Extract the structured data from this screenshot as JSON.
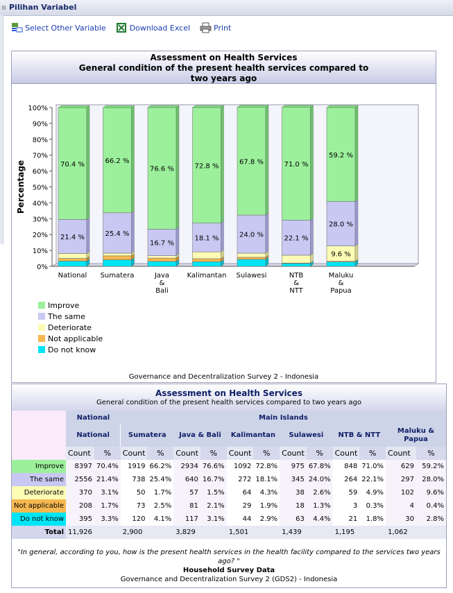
{
  "panel": {
    "title": "Pilihan Variabel"
  },
  "toolbar": {
    "select": "Select Other Variable",
    "download": "Download Excel",
    "print": "Print"
  },
  "chart_data": {
    "type": "bar",
    "stacked": true,
    "title": "Assessment on Health Services",
    "subtitle": "General condition of the present health services compared to two years ago",
    "title_lines": [
      "Assessment on Health Services",
      "General condition of the present health services compared to",
      "two years ago"
    ],
    "ylabel": "Percentage",
    "ylim": [
      0,
      100
    ],
    "yticks": [
      "0%",
      "10%",
      "20%",
      "30%",
      "40%",
      "50%",
      "60%",
      "70%",
      "80%",
      "90%",
      "100%"
    ],
    "categories": [
      "National",
      "Sumatera",
      "Java & Bali",
      "Kalimantan",
      "Sulawesi",
      "NTB & NTT",
      "Maluku & Papua"
    ],
    "category_lines": [
      [
        "National"
      ],
      [
        "Sumatera"
      ],
      [
        "Java",
        "&",
        "Bali"
      ],
      [
        "Kalimantan"
      ],
      [
        "Sulawesi"
      ],
      [
        "NTB",
        "&",
        "NTT"
      ],
      [
        "Maluku",
        "&",
        "Papua"
      ]
    ],
    "series": [
      {
        "name": "Do not know",
        "color": "#00e5f5",
        "values": [
          3.3,
          4.1,
          3.1,
          2.9,
          4.4,
          1.8,
          2.8
        ]
      },
      {
        "name": "Not applicable",
        "color": "#f5b850",
        "values": [
          1.7,
          2.5,
          2.1,
          1.9,
          1.3,
          0.3,
          0.4
        ]
      },
      {
        "name": "Deteriorate",
        "color": "#fcfcb4",
        "values": [
          3.1,
          1.7,
          1.5,
          4.3,
          2.6,
          4.9,
          9.6
        ]
      },
      {
        "name": "The same",
        "color": "#c8c8f2",
        "values": [
          21.4,
          25.4,
          16.7,
          18.1,
          24.0,
          22.1,
          28.0
        ]
      },
      {
        "name": "Improve",
        "color": "#9cf09c",
        "values": [
          70.4,
          66.2,
          76.6,
          72.8,
          67.8,
          71.0,
          59.2
        ]
      }
    ],
    "data_labels": {
      "Improve": [
        "70.4 %",
        "66.2 %",
        "76.6 %",
        "72.8 %",
        "67.8 %",
        "71.0 %",
        "59.2 %"
      ],
      "The same": [
        "21.4 %",
        "25.4 %",
        "16.7 %",
        "18.1 %",
        "24.0 %",
        "22.1 %",
        "28.0 %"
      ],
      "Deteriorate": [
        "",
        "",
        "",
        "",
        "",
        "",
        "9.6 %"
      ]
    },
    "legend": [
      "Improve",
      "The same",
      "Deteriorate",
      "Not applicable",
      "Do not know"
    ],
    "legend_colors": [
      "#9cf09c",
      "#c8c8f2",
      "#fcfcb4",
      "#f5b850",
      "#00e5f5"
    ],
    "legend_placement": "bottom-left",
    "source": "Governance and Decentralization Survey 2 - Indonesia"
  },
  "table": {
    "title": "Assessment on Health Services",
    "subtitle": "General condition of the present health services compared to two years ago",
    "group_national": "National",
    "group_islands": "Main Islands",
    "regions": [
      "National",
      "Sumatera",
      "Java & Bali",
      "Kalimantan",
      "Sulawesi",
      "NTB & NTT",
      "Maluku & Papua"
    ],
    "col_count": "Count",
    "col_pct": "%",
    "rows": [
      {
        "label": "Improve",
        "color": "#9cf09c",
        "cells": [
          [
            "8397",
            "70.4%"
          ],
          [
            "1919",
            "66.2%"
          ],
          [
            "2934",
            "76.6%"
          ],
          [
            "1092",
            "72.8%"
          ],
          [
            "975",
            "67.8%"
          ],
          [
            "848",
            "71.0%"
          ],
          [
            "629",
            "59.2%"
          ]
        ]
      },
      {
        "label": "The same",
        "color": "#c8c8f2",
        "cells": [
          [
            "2556",
            "21.4%"
          ],
          [
            "738",
            "25.4%"
          ],
          [
            "640",
            "16.7%"
          ],
          [
            "272",
            "18.1%"
          ],
          [
            "345",
            "24.0%"
          ],
          [
            "264",
            "22.1%"
          ],
          [
            "297",
            "28.0%"
          ]
        ]
      },
      {
        "label": "Deteriorate",
        "color": "#fcfcb4",
        "cells": [
          [
            "370",
            "3.1%"
          ],
          [
            "50",
            "1.7%"
          ],
          [
            "57",
            "1.5%"
          ],
          [
            "64",
            "4.3%"
          ],
          [
            "38",
            "2.6%"
          ],
          [
            "59",
            "4.9%"
          ],
          [
            "102",
            "9.6%"
          ]
        ]
      },
      {
        "label": "Not applicable",
        "color": "#f5b850",
        "cells": [
          [
            "208",
            "1.7%"
          ],
          [
            "73",
            "2.5%"
          ],
          [
            "81",
            "2.1%"
          ],
          [
            "29",
            "1.9%"
          ],
          [
            "18",
            "1.3%"
          ],
          [
            "3",
            "0.3%"
          ],
          [
            "4",
            "0.4%"
          ]
        ]
      },
      {
        "label": "Do not know",
        "color": "#00e5f5",
        "cells": [
          [
            "395",
            "3.3%"
          ],
          [
            "120",
            "4.1%"
          ],
          [
            "117",
            "3.1%"
          ],
          [
            "44",
            "2.9%"
          ],
          [
            "63",
            "4.4%"
          ],
          [
            "21",
            "1.8%"
          ],
          [
            "30",
            "2.8%"
          ]
        ]
      }
    ],
    "total_label": "Total",
    "totals": [
      "11,926",
      "2,900",
      "3,829",
      "1,501",
      "1,439",
      "1,195",
      "1,062"
    ],
    "question": "\"In general, according to you, how is the present health services in the health facility compared to the services two years ago? \"",
    "source_title": "Household Survey Data",
    "source": "Governance and Decentralization Survey 2 (GDS2) - Indonesia"
  }
}
